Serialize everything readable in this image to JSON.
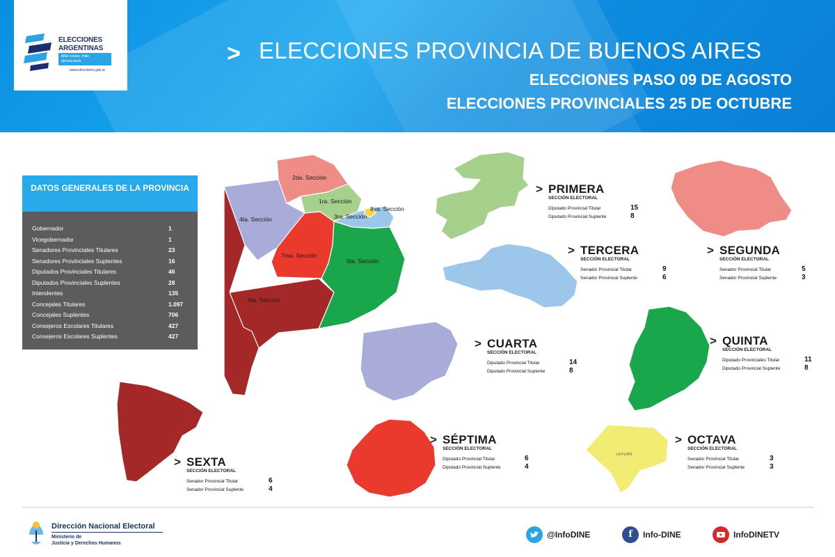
{
  "colors": {
    "header_blue": "#0d8ee0",
    "primera": "#a8d08d",
    "segunda": "#ef8c86",
    "tercera": "#9cc6ea",
    "cuarta": "#a9acd8",
    "quinta": "#1aa64a",
    "sexta": "#a52828",
    "septima": "#ea3a2e",
    "octava": "#f2ec74",
    "capital": "#f6d54a"
  },
  "logo": {
    "line1": "ELECCIONES",
    "line2": "ARGENTINAS",
    "slogan": "Más voces, más democracia",
    "url": "www.elecciones.gob.ar"
  },
  "header": {
    "chevron": ">",
    "title": "ELECCIONES PROVINCIA DE BUENOS AIRES",
    "subtitle1": "ELECCIONES PASO 09 DE AGOSTO",
    "subtitle2": "ELECCIONES PROVINCIALES 25 DE OCTUBRE"
  },
  "general_data": {
    "title": "DATOS GENERALES DE LA PROVINCIA",
    "rows": [
      {
        "label": "Gobernador",
        "value": "1"
      },
      {
        "label": "Vicegobernador",
        "value": "1"
      },
      {
        "label": "Senadores Provinciales Titulares",
        "value": "23"
      },
      {
        "label": "Senadores Provinciales Suplentes",
        "value": "16"
      },
      {
        "label": "Diputados Provinciales Titulares",
        "value": "46"
      },
      {
        "label": "Diputados Provinciales Suplentes",
        "value": "28"
      },
      {
        "label": "Intendentes",
        "value": "135"
      },
      {
        "label": "Concejales Titulares",
        "value": "1.097"
      },
      {
        "label": "Concejales Suplentes",
        "value": "706"
      },
      {
        "label": "Consejeros Escolares Titulares",
        "value": "427"
      },
      {
        "label": "Consejeros Escolares Suplentes",
        "value": "427"
      }
    ]
  },
  "province_map": {
    "labels": {
      "s1": "1ra. Sección",
      "s2": "2da. Sección",
      "s3": "3ra. Sección",
      "s4": "4ta. Sección",
      "s5": "5ta. Sección",
      "s6": "6ta. Sección",
      "s7": "7ma. Sección",
      "s8": "8va. Sección"
    }
  },
  "sections": {
    "primera": {
      "name": "PRIMERA",
      "subtitle": "SECCIÓN ELECTORAL",
      "r1": "Diputado Provincial Titular",
      "v1": "15",
      "r2": "Diputado Provincial Suplente",
      "v2": "8"
    },
    "segunda": {
      "name": "SEGUNDA",
      "subtitle": "SECCIÓN ELECTORAL",
      "r1": "Senador Provincial Titular",
      "v1": "5",
      "r2": "Senador Provincial Suplente",
      "v2": "3"
    },
    "tercera": {
      "name": "TERCERA",
      "subtitle": "SECCIÓN ELECTORAL",
      "r1": "Senador Provincial Titular",
      "v1": "9",
      "r2": "Senador Provincial Suplente",
      "v2": "6"
    },
    "cuarta": {
      "name": "CUARTA",
      "subtitle": "SECCIÓN ELECTORAL",
      "r1": "Diputado Provincial Titular",
      "v1": "14",
      "r2": "Diputado Provincial Suplente",
      "v2": "8"
    },
    "quinta": {
      "name": "QUINTA",
      "subtitle": "SECCIÓN ELECTORAL",
      "r1": "Diputado Provinciales Titular",
      "v1": "11",
      "r2": "Diputado Provincial Suplente",
      "v2": "8"
    },
    "sexta": {
      "name": "SEXTA",
      "subtitle": "SECCIÓN ELECTORAL",
      "r1": "Senador Provincial Titular",
      "v1": "6",
      "r2": "Senador Provincial Suplente",
      "v2": "4"
    },
    "septima": {
      "name": "SÉPTIMA",
      "subtitle": "SECCIÓN ELECTORAL",
      "r1": "Diputado Provincial Titular",
      "v1": "6",
      "r2": "Diputado Provincial Suplente",
      "v2": "4"
    },
    "octava": {
      "name": "OCTAVA",
      "subtitle": "SECCIÓN ELECTORAL",
      "r1": "Senador Provincial Titular",
      "v1": "3",
      "r2": "Senador Provincial Suplente",
      "v2": "3",
      "city": "LA PLATA"
    }
  },
  "footer": {
    "org": "Dirección Nacional Electoral",
    "ministry1": "Ministerio de",
    "ministry2": "Justicia y Derechos Humanos",
    "twitter": "@InfoDINE",
    "facebook": "Info-DINE",
    "youtube": "InfoDINETV",
    "twitter_icon": "twitter-bird-icon",
    "facebook_icon": "facebook-f-icon",
    "youtube_icon": "youtube-icon"
  }
}
